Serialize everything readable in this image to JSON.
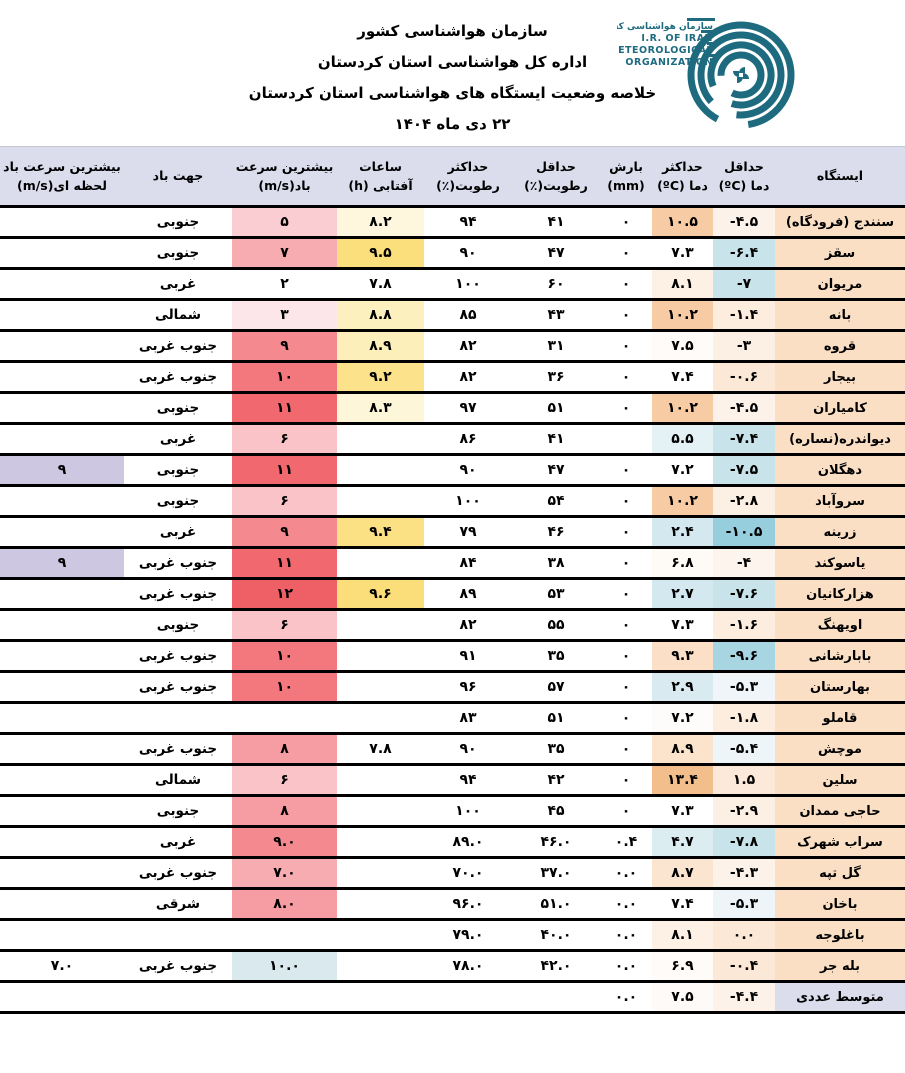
{
  "header": {
    "org_line1": "سازمان هواشناسی کشور",
    "org_line2": "اداره کل هواشناسی استان کردستان",
    "report_title": "خلاصه وضعیت ایستگاه های هواشناسی استان کردستان",
    "report_date": "۲۲ دی ماه ۱۴۰۴",
    "logo": {
      "fa_name": "سازمان هواشناسی کشور",
      "en_line1": "I.R. OF IRAN",
      "en_line2": "METEOROLOGICAL",
      "en_line3": "ORGANIZATION",
      "color": "#1E6B80"
    }
  },
  "table": {
    "columns": [
      {
        "id": "station",
        "label_l1": "ایستگاه",
        "label_l2": ""
      },
      {
        "id": "tmin",
        "label_l1": "حداقل",
        "label_l2": "دما (ºC)"
      },
      {
        "id": "tmax",
        "label_l1": "حداکثر",
        "label_l2": "دما (ºC)"
      },
      {
        "id": "precip",
        "label_l1": "بارش",
        "label_l2": "(mm)"
      },
      {
        "id": "rhmin",
        "label_l1": "حداقل",
        "label_l2": "رطوبت(٪)"
      },
      {
        "id": "rhmax",
        "label_l1": "حداکثر",
        "label_l2": "رطوبت(٪)"
      },
      {
        "id": "sun",
        "label_l1": "ساعات",
        "label_l2": "آفتابی (h)"
      },
      {
        "id": "wind",
        "label_l1": "بیشترین سرعت",
        "label_l2": "باد(m/s)"
      },
      {
        "id": "dir",
        "label_l1": "جهت باد",
        "label_l2": ""
      },
      {
        "id": "gust",
        "label_l1": "بیشترین سرعت باد",
        "label_l2": "لحظه ای(m/s)"
      }
    ],
    "rows": [
      {
        "station": "سنندج (فرودگاه)",
        "cells": [
          {
            "v": "-۴.۵",
            "bg": "#FDF2EA"
          },
          {
            "v": "۱۰.۵",
            "bg": "#F7CBA3"
          },
          {
            "v": "۰"
          },
          {
            "v": "۴۱"
          },
          {
            "v": "۹۴"
          },
          {
            "v": "۸.۲",
            "bg": "#FEF7DE"
          },
          {
            "v": "۵",
            "bg": "#FACDD2"
          },
          {
            "v": "جنوبی"
          },
          {
            "v": ""
          }
        ]
      },
      {
        "station": "سقز",
        "cells": [
          {
            "v": "-۶.۴",
            "bg": "#C9E3EA"
          },
          {
            "v": "۷.۳"
          },
          {
            "v": "۰"
          },
          {
            "v": "۴۷"
          },
          {
            "v": "۹۰"
          },
          {
            "v": "۹.۵",
            "bg": "#FBDF7C"
          },
          {
            "v": "۷",
            "bg": "#F7ACB2"
          },
          {
            "v": "جنوبی"
          },
          {
            "v": ""
          }
        ]
      },
      {
        "station": "مریوان",
        "cells": [
          {
            "v": "-۷",
            "bg": "#C9E3EA"
          },
          {
            "v": "۸.۱",
            "bg": "#FDF0E4"
          },
          {
            "v": "۰"
          },
          {
            "v": "۶۰"
          },
          {
            "v": "۱۰۰"
          },
          {
            "v": "۷.۸"
          },
          {
            "v": "۲"
          },
          {
            "v": "غربی"
          },
          {
            "v": ""
          }
        ]
      },
      {
        "station": "بانه",
        "cells": [
          {
            "v": "-۱.۴",
            "bg": "#FCEDDF"
          },
          {
            "v": "۱۰.۲",
            "bg": "#F7CBA3"
          },
          {
            "v": "۰"
          },
          {
            "v": "۴۳"
          },
          {
            "v": "۸۵"
          },
          {
            "v": "۸.۸",
            "bg": "#FDF0BF"
          },
          {
            "v": "۳",
            "bg": "#FDE6E9"
          },
          {
            "v": "شمالی"
          },
          {
            "v": ""
          }
        ]
      },
      {
        "station": "قروه",
        "cells": [
          {
            "v": "-۳",
            "bg": "#FCEFE3"
          },
          {
            "v": "۷.۵",
            "bg": "#FEFBF8"
          },
          {
            "v": "۰"
          },
          {
            "v": "۳۱"
          },
          {
            "v": "۸۲"
          },
          {
            "v": "۸.۹",
            "bg": "#FDEFBA"
          },
          {
            "v": "۹",
            "bg": "#F48A90"
          },
          {
            "v": "جنوب غربی"
          },
          {
            "v": ""
          }
        ]
      },
      {
        "station": "بیجار",
        "cells": [
          {
            "v": "-۰.۶",
            "bg": "#FCE8D6"
          },
          {
            "v": "۷.۴"
          },
          {
            "v": "۰"
          },
          {
            "v": "۳۶"
          },
          {
            "v": "۸۲"
          },
          {
            "v": "۹.۲",
            "bg": "#FCE38B"
          },
          {
            "v": "۱۰",
            "bg": "#F3787E"
          },
          {
            "v": "جنوب غربی"
          },
          {
            "v": ""
          }
        ]
      },
      {
        "station": "کامیاران",
        "cells": [
          {
            "v": "-۴.۵",
            "bg": "#FDF2EA"
          },
          {
            "v": "۱۰.۲",
            "bg": "#F7CBA3"
          },
          {
            "v": "۰"
          },
          {
            "v": "۵۱"
          },
          {
            "v": "۹۷"
          },
          {
            "v": "۸.۳",
            "bg": "#FEF6D9"
          },
          {
            "v": "۱۱",
            "bg": "#F1686F"
          },
          {
            "v": "جنوبی"
          },
          {
            "v": ""
          }
        ]
      },
      {
        "station": "دیواندره(نساره)",
        "cells": [
          {
            "v": "-۷.۴",
            "bg": "#C9E3EA"
          },
          {
            "v": "۵.۵",
            "bg": "#E4F1F5"
          },
          {
            "v": ""
          },
          {
            "v": "۴۱"
          },
          {
            "v": "۸۶"
          },
          {
            "v": ""
          },
          {
            "v": "۶",
            "bg": "#F9C3C8"
          },
          {
            "v": "غربی"
          },
          {
            "v": ""
          }
        ]
      },
      {
        "station": "دهگلان",
        "cells": [
          {
            "v": "-۷.۵",
            "bg": "#C9E3EA"
          },
          {
            "v": "۷.۲"
          },
          {
            "v": "۰"
          },
          {
            "v": "۴۷"
          },
          {
            "v": "۹۰"
          },
          {
            "v": ""
          },
          {
            "v": "۱۱",
            "bg": "#F1686F"
          },
          {
            "v": "جنوبی"
          },
          {
            "v": "۹",
            "bg": "#CDC7E1"
          }
        ]
      },
      {
        "station": "سروآباد",
        "cells": [
          {
            "v": "-۲.۸",
            "bg": "#FCEFE3"
          },
          {
            "v": "۱۰.۲",
            "bg": "#F7CBA3"
          },
          {
            "v": "۰"
          },
          {
            "v": "۵۴"
          },
          {
            "v": "۱۰۰"
          },
          {
            "v": ""
          },
          {
            "v": "۶",
            "bg": "#F9C3C8"
          },
          {
            "v": "جنوبی"
          },
          {
            "v": ""
          }
        ]
      },
      {
        "station": "زرینه",
        "cells": [
          {
            "v": "-۱۰.۵",
            "bg": "#97CEDD"
          },
          {
            "v": "۲.۴",
            "bg": "#D3E8EF"
          },
          {
            "v": "۰"
          },
          {
            "v": "۴۶"
          },
          {
            "v": "۷۹"
          },
          {
            "v": "۹.۴",
            "bg": "#FBE183"
          },
          {
            "v": "۹",
            "bg": "#F48A90"
          },
          {
            "v": "غربی"
          },
          {
            "v": ""
          }
        ]
      },
      {
        "station": "یاسوکند",
        "cells": [
          {
            "v": "-۴",
            "bg": "#FDF4ED"
          },
          {
            "v": "۶.۸",
            "bg": "#FEFAF6"
          },
          {
            "v": "۰"
          },
          {
            "v": "۳۸"
          },
          {
            "v": "۸۴"
          },
          {
            "v": ""
          },
          {
            "v": "۱۱",
            "bg": "#F1686F"
          },
          {
            "v": "جنوب غربی"
          },
          {
            "v": "۹",
            "bg": "#CDC7E1"
          }
        ]
      },
      {
        "station": "هزارکانیان",
        "cells": [
          {
            "v": "-۷.۶",
            "bg": "#C9E3EA"
          },
          {
            "v": "۲.۷",
            "bg": "#D3E8EF"
          },
          {
            "v": "۰"
          },
          {
            "v": "۵۳"
          },
          {
            "v": "۸۹"
          },
          {
            "v": "۹.۶",
            "bg": "#FBDE79"
          },
          {
            "v": "۱۲",
            "bg": "#EF5F66"
          },
          {
            "v": "جنوب غربی"
          },
          {
            "v": ""
          }
        ]
      },
      {
        "station": "اویهنگ",
        "cells": [
          {
            "v": "-۱.۶",
            "bg": "#FCEDDF"
          },
          {
            "v": "۷.۳"
          },
          {
            "v": "۰"
          },
          {
            "v": "۵۵"
          },
          {
            "v": "۸۲"
          },
          {
            "v": ""
          },
          {
            "v": "۶",
            "bg": "#F9C3C8"
          },
          {
            "v": "جنوبی"
          },
          {
            "v": ""
          }
        ]
      },
      {
        "station": "بابارشانی",
        "cells": [
          {
            "v": "-۹.۶",
            "bg": "#A8D5E2"
          },
          {
            "v": "۹.۳",
            "bg": "#FBDFC6"
          },
          {
            "v": "۰"
          },
          {
            "v": "۳۵"
          },
          {
            "v": "۹۱"
          },
          {
            "v": ""
          },
          {
            "v": "۱۰",
            "bg": "#F3787E"
          },
          {
            "v": "جنوب غربی"
          },
          {
            "v": ""
          }
        ]
      },
      {
        "station": "بهارستان",
        "cells": [
          {
            "v": "-۵.۳",
            "bg": "#EFF5F8"
          },
          {
            "v": "۲.۹",
            "bg": "#D9EBF1"
          },
          {
            "v": "۰"
          },
          {
            "v": "۵۷"
          },
          {
            "v": "۹۶"
          },
          {
            "v": ""
          },
          {
            "v": "۱۰",
            "bg": "#F3787E"
          },
          {
            "v": "جنوب غربی"
          },
          {
            "v": ""
          }
        ]
      },
      {
        "station": "قاملو",
        "cells": [
          {
            "v": "-۱.۸",
            "bg": "#FCEDDF"
          },
          {
            "v": "۷.۲",
            "bg": "#FEFCFB"
          },
          {
            "v": "۰"
          },
          {
            "v": "۵۱"
          },
          {
            "v": "۸۳"
          },
          {
            "v": ""
          },
          {
            "v": ""
          },
          {
            "v": ""
          },
          {
            "v": ""
          }
        ]
      },
      {
        "station": "موچش",
        "cells": [
          {
            "v": "-۵.۴",
            "bg": "#EDF5F8"
          },
          {
            "v": "۸.۹",
            "bg": "#FBE3CC"
          },
          {
            "v": "۰"
          },
          {
            "v": "۳۵"
          },
          {
            "v": "۹۰"
          },
          {
            "v": "۷.۸"
          },
          {
            "v": "۸",
            "bg": "#F59DA3"
          },
          {
            "v": "جنوب غربی"
          },
          {
            "v": ""
          }
        ]
      },
      {
        "station": "سلین",
        "cells": [
          {
            "v": "۱.۵",
            "bg": "#FCE9D9"
          },
          {
            "v": "۱۳.۴",
            "bg": "#F2BE8C"
          },
          {
            "v": "۰"
          },
          {
            "v": "۴۲"
          },
          {
            "v": "۹۴"
          },
          {
            "v": ""
          },
          {
            "v": "۶",
            "bg": "#F9C3C8"
          },
          {
            "v": "شمالی"
          },
          {
            "v": ""
          }
        ]
      },
      {
        "station": "حاجی ممدان",
        "cells": [
          {
            "v": "-۲.۹",
            "bg": "#FCEFE3"
          },
          {
            "v": "۷.۳"
          },
          {
            "v": "۰"
          },
          {
            "v": "۴۵"
          },
          {
            "v": "۱۰۰"
          },
          {
            "v": ""
          },
          {
            "v": "۸",
            "bg": "#F59DA3"
          },
          {
            "v": "جنوبی"
          },
          {
            "v": ""
          }
        ]
      },
      {
        "station": "سراب شهرک",
        "cells": [
          {
            "v": "-۷.۸",
            "bg": "#C9E3EA"
          },
          {
            "v": "۴.۷",
            "bg": "#DCEDF2"
          },
          {
            "v": "۰.۴"
          },
          {
            "v": "۴۶.۰"
          },
          {
            "v": "۸۹.۰"
          },
          {
            "v": ""
          },
          {
            "v": "۹.۰",
            "bg": "#F48A90"
          },
          {
            "v": "غربی"
          },
          {
            "v": ""
          }
        ]
      },
      {
        "station": "گل تپه",
        "cells": [
          {
            "v": "-۴.۳",
            "bg": "#FDF2EA"
          },
          {
            "v": "۸.۷",
            "bg": "#FBE5D0"
          },
          {
            "v": "۰.۰"
          },
          {
            "v": "۳۷.۰"
          },
          {
            "v": "۷۰.۰"
          },
          {
            "v": ""
          },
          {
            "v": "۷.۰",
            "bg": "#F7ACB2"
          },
          {
            "v": "جنوب غربی"
          },
          {
            "v": ""
          }
        ]
      },
      {
        "station": "باخان",
        "cells": [
          {
            "v": "-۵.۳",
            "bg": "#EDF5F8"
          },
          {
            "v": "۷.۴"
          },
          {
            "v": "۰.۰"
          },
          {
            "v": "۵۱.۰"
          },
          {
            "v": "۹۶.۰"
          },
          {
            "v": ""
          },
          {
            "v": "۸.۰",
            "bg": "#F59DA3"
          },
          {
            "v": "شرقی"
          },
          {
            "v": ""
          }
        ]
      },
      {
        "station": "باغلوجه",
        "cells": [
          {
            "v": "۰.۰",
            "bg": "#FCE8D6"
          },
          {
            "v": "۸.۱",
            "bg": "#FDF0E4"
          },
          {
            "v": "۰.۰"
          },
          {
            "v": "۴۰.۰"
          },
          {
            "v": "۷۹.۰"
          },
          {
            "v": ""
          },
          {
            "v": ""
          },
          {
            "v": ""
          },
          {
            "v": ""
          }
        ]
      },
      {
        "station": "بله جر",
        "cells": [
          {
            "v": "-۰.۴",
            "bg": "#FCE8D6"
          },
          {
            "v": "۶.۹",
            "bg": "#FEFBF8"
          },
          {
            "v": "۰.۰"
          },
          {
            "v": "۴۲.۰"
          },
          {
            "v": "۷۸.۰"
          },
          {
            "v": ""
          },
          {
            "v": "۱۰.۰",
            "bg": "#D9E9EE"
          },
          {
            "v": "جنوب غربی"
          },
          {
            "v": "۷.۰"
          }
        ]
      },
      {
        "station": "متوسط عددی",
        "station_bg": "#DBDDEC",
        "cells": [
          {
            "v": "-۴.۴",
            "bg": "#FDF2EA"
          },
          {
            "v": "۷.۵",
            "bg": "#FEFAF7"
          },
          {
            "v": "۰.۰"
          },
          {
            "v": ""
          },
          {
            "v": ""
          },
          {
            "v": ""
          },
          {
            "v": ""
          },
          {
            "v": ""
          },
          {
            "v": ""
          }
        ]
      }
    ]
  }
}
